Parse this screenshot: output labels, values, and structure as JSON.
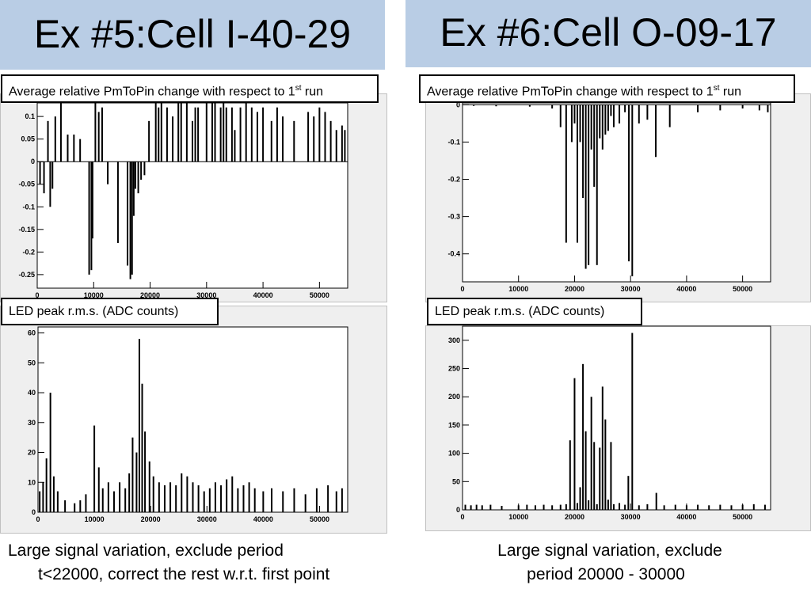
{
  "panels": [
    {
      "title": "Ex #5:Cell I-40-29",
      "caption_line1": "Large signal variation, exclude period",
      "caption_line2": "t<22000, correct the rest w.r.t. first point"
    },
    {
      "title": "Ex #6:Cell O-09-17",
      "caption_line1": "Large signal variation, exclude",
      "caption_line2": "period 20000 - 30000"
    }
  ],
  "labels": {
    "pmtopin_prefix": "Average relative PmToPin change with respect to 1",
    "pmtopin_sup": "st",
    "pmtopin_suffix": " run",
    "led_rms": "LED peak r.m.s. (ADC counts)"
  },
  "colors": {
    "header_bg": "#b9cde5",
    "plot_bg": "#efefef",
    "bar": "#000000"
  },
  "chart_data": [
    {
      "id": "c1",
      "type": "bar",
      "ylabel": "",
      "xlabel": "",
      "xlim": [
        0,
        55000
      ],
      "ylim": [
        -0.28,
        0.13
      ],
      "xticks": [
        0,
        10000,
        20000,
        30000,
        40000,
        50000
      ],
      "yticks": [
        0.1,
        0.05,
        0,
        -0.05,
        -0.1,
        -0.15,
        -0.2,
        -0.25
      ],
      "ytick_labels": [
        "0.1",
        "0.05",
        "0",
        "-0.05",
        "-0.1",
        "-0.15",
        "-0.2",
        "-0.25"
      ],
      "x": [
        500,
        1200,
        1900,
        2300,
        2700,
        3200,
        4200,
        5400,
        6500,
        7600,
        9200,
        9600,
        9800,
        10300,
        10900,
        11500,
        12500,
        14300,
        16000,
        16500,
        16800,
        17100,
        17400,
        17900,
        18400,
        19000,
        19800,
        21000,
        21500,
        22000,
        23000,
        24000,
        25000,
        25500,
        26500,
        27500,
        28000,
        28500,
        30000,
        31000,
        31500,
        32500,
        33000,
        33500,
        34500,
        35000,
        36000,
        37000,
        38000,
        39000,
        40000,
        41500,
        42500,
        43500,
        45500,
        48000,
        49000,
        50000,
        51000,
        52000,
        53000,
        54000,
        54500
      ],
      "values": [
        -0.05,
        -0.07,
        0.09,
        -0.1,
        -0.06,
        0.1,
        0.14,
        0.06,
        0.06,
        0.05,
        -0.25,
        -0.24,
        -0.17,
        0.13,
        0.11,
        0.12,
        -0.05,
        -0.18,
        -0.23,
        -0.26,
        -0.25,
        -0.12,
        -0.06,
        -0.07,
        -0.04,
        -0.03,
        0.09,
        0.13,
        0.12,
        0.14,
        0.12,
        0.1,
        0.14,
        0.13,
        0.14,
        0.09,
        0.12,
        0.12,
        0.14,
        0.13,
        0.14,
        0.12,
        0.13,
        0.12,
        0.12,
        0.07,
        0.12,
        0.13,
        0.12,
        0.11,
        0.12,
        0.09,
        0.12,
        0.1,
        0.09,
        0.11,
        0.1,
        0.12,
        0.11,
        0.09,
        0.07,
        0.08,
        0.07
      ]
    },
    {
      "id": "c2",
      "type": "bar",
      "ylabel": "",
      "xlabel": "",
      "xlim": [
        0,
        55000
      ],
      "ylim": [
        0,
        62
      ],
      "xticks": [
        0,
        10000,
        20000,
        30000,
        40000,
        50000
      ],
      "yticks": [
        0,
        10,
        20,
        30,
        40,
        50,
        60
      ],
      "ytick_labels": [
        "0",
        "10",
        "20",
        "30",
        "40",
        "50",
        "60"
      ],
      "x": [
        300,
        900,
        1500,
        2200,
        2800,
        3500,
        4800,
        6500,
        7500,
        8500,
        10000,
        10800,
        11500,
        12500,
        13500,
        14500,
        15500,
        16200,
        16800,
        17500,
        18000,
        18500,
        19000,
        19800,
        20500,
        21500,
        22500,
        23500,
        24500,
        25500,
        26500,
        27500,
        28500,
        29500,
        30500,
        31500,
        32500,
        33500,
        34500,
        35500,
        36500,
        37500,
        38500,
        40000,
        41500,
        43500,
        45500,
        47500,
        49500,
        51500,
        53000,
        54000
      ],
      "values": [
        7,
        10,
        18,
        40,
        12,
        7,
        4,
        3,
        4,
        6,
        29,
        15,
        8,
        10,
        7,
        10,
        8,
        13,
        25,
        20,
        58,
        43,
        27,
        17,
        12,
        10,
        9,
        10,
        9,
        13,
        12,
        10,
        9,
        7,
        8,
        10,
        9,
        11,
        12,
        8,
        9,
        10,
        8,
        7,
        8,
        7,
        8,
        6,
        8,
        9,
        7,
        8
      ]
    },
    {
      "id": "c3",
      "type": "bar",
      "ylabel": "",
      "xlabel": "",
      "xlim": [
        0,
        55000
      ],
      "ylim": [
        -0.475,
        0.005
      ],
      "xticks": [
        0,
        10000,
        20000,
        30000,
        40000,
        50000
      ],
      "yticks": [
        0,
        -0.1,
        -0.2,
        -0.3,
        -0.4
      ],
      "ytick_labels": [
        "0",
        "-0.1",
        "-0.2",
        "-0.3",
        "-0.4"
      ],
      "x": [
        2000,
        6000,
        12000,
        16000,
        17500,
        18500,
        19500,
        20000,
        20500,
        21000,
        21500,
        22000,
        22500,
        23000,
        23500,
        24000,
        24500,
        25000,
        25500,
        26000,
        26500,
        27000,
        28000,
        29000,
        29700,
        30300,
        31500,
        33000,
        34500,
        37000,
        42000,
        46000,
        50000,
        53000,
        54500
      ],
      "values": [
        -0.003,
        -0.004,
        -0.005,
        -0.01,
        -0.06,
        -0.37,
        -0.1,
        -0.05,
        -0.37,
        -0.1,
        -0.25,
        -0.44,
        -0.43,
        -0.12,
        -0.22,
        -0.43,
        -0.09,
        -0.12,
        -0.08,
        -0.07,
        -0.03,
        -0.06,
        -0.05,
        -0.02,
        -0.42,
        -0.46,
        -0.05,
        -0.04,
        -0.14,
        -0.06,
        -0.02,
        -0.015,
        -0.01,
        -0.015,
        -0.02
      ]
    },
    {
      "id": "c4",
      "type": "bar",
      "ylabel": "",
      "xlabel": "",
      "xlim": [
        0,
        55000
      ],
      "ylim": [
        0,
        325
      ],
      "xticks": [
        0,
        10000,
        20000,
        30000,
        40000,
        50000
      ],
      "yticks": [
        0,
        50,
        100,
        150,
        200,
        250,
        300
      ],
      "ytick_labels": [
        "0",
        "50",
        "100",
        "150",
        "200",
        "250",
        "300"
      ],
      "x": [
        500,
        1500,
        2500,
        3500,
        5000,
        7000,
        10000,
        11500,
        13000,
        14500,
        16000,
        17500,
        18500,
        19200,
        20000,
        20500,
        21000,
        21500,
        22000,
        22500,
        23000,
        23500,
        24000,
        24500,
        25000,
        25500,
        26000,
        26500,
        27000,
        28000,
        29000,
        29600,
        30300,
        31500,
        33000,
        34600,
        36000,
        38000,
        40000,
        42000,
        44000,
        46000,
        48000,
        50000,
        52000,
        54000
      ],
      "values": [
        9,
        8,
        9,
        8,
        9,
        7,
        8,
        9,
        8,
        9,
        8,
        9,
        10,
        123,
        233,
        12,
        40,
        258,
        139,
        17,
        200,
        120,
        10,
        110,
        218,
        160,
        18,
        120,
        10,
        12,
        9,
        60,
        313,
        8,
        10,
        30,
        8,
        9,
        8,
        9,
        8,
        9,
        8,
        9,
        10,
        9
      ]
    }
  ]
}
